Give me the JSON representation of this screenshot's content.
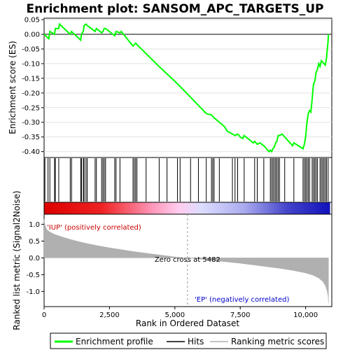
{
  "chart_data": [
    {
      "type": "line",
      "title": "Enrichment plot: SANSOM_APC_TARGETS_UP",
      "ylabel": "Enrichment score (ES)",
      "ylim": [
        -0.42,
        0.055
      ],
      "yticks": [
        0.05,
        0.0,
        -0.05,
        -0.1,
        -0.15,
        -0.2,
        -0.25,
        -0.3,
        -0.35,
        -0.4
      ],
      "ytick_labels": [
        "0.05",
        "0.00",
        "-0.05",
        "-0.10",
        "-0.15",
        "-0.20",
        "-0.25",
        "-0.30",
        "-0.35",
        "-0.40"
      ],
      "series": [
        {
          "name": "Enrichment profile",
          "color": "#00ff00",
          "x": [
            0,
            180,
            220,
            400,
            430,
            560,
            590,
            1000,
            1050,
            1400,
            1430,
            1500,
            1530,
            1600,
            1650,
            1950,
            2000,
            2200,
            2250,
            2300,
            2350,
            2700,
            2750,
            2900,
            2950,
            3400,
            3450,
            3500,
            3550,
            4400,
            5000,
            5500,
            6200,
            6400,
            6500,
            6900,
            7000,
            7200,
            7300,
            7400,
            7500,
            7600,
            7650,
            8000,
            8050,
            8150,
            8250,
            8400,
            8500,
            8600,
            8650,
            8700,
            8750,
            8800,
            8850,
            8900,
            8950,
            9000,
            9100,
            9500,
            9550,
            9900,
            9950,
            10000,
            10050,
            10100,
            10150,
            10200,
            10250,
            10300,
            10350,
            10400,
            10450,
            10500,
            10550,
            10600,
            10650,
            10700,
            10750,
            10800,
            10830,
            10860,
            10870
          ],
          "y": [
            0.0,
            -0.015,
            0.01,
            0.0,
            0.02,
            0.02,
            0.035,
            0.0,
            0.01,
            -0.02,
            0.0,
            0.01,
            0.03,
            0.035,
            0.03,
            0.01,
            0.02,
            0.005,
            0.01,
            0.02,
            0.02,
            -0.005,
            0.01,
            0.005,
            0.01,
            -0.04,
            -0.035,
            -0.03,
            -0.035,
            -0.11,
            -0.16,
            -0.205,
            -0.27,
            -0.275,
            -0.285,
            -0.315,
            -0.33,
            -0.34,
            -0.345,
            -0.34,
            -0.35,
            -0.355,
            -0.345,
            -0.37,
            -0.365,
            -0.375,
            -0.37,
            -0.38,
            -0.39,
            -0.4,
            -0.395,
            -0.4,
            -0.39,
            -0.385,
            -0.37,
            -0.365,
            -0.345,
            -0.345,
            -0.34,
            -0.38,
            -0.37,
            -0.39,
            -0.375,
            -0.35,
            -0.3,
            -0.27,
            -0.26,
            -0.265,
            -0.22,
            -0.17,
            -0.16,
            -0.13,
            -0.12,
            -0.1,
            -0.11,
            -0.09,
            -0.095,
            -0.1,
            -0.105,
            -0.08,
            -0.05,
            -0.02,
            0.0
          ]
        }
      ]
    },
    {
      "type": "barcode",
      "series": [
        {
          "name": "Hits",
          "color": "#000000",
          "x": [
            30,
            150,
            220,
            400,
            430,
            560,
            1000,
            1050,
            1400,
            1430,
            1500,
            1530,
            1600,
            1650,
            1950,
            2000,
            2200,
            2250,
            2300,
            2350,
            2700,
            2750,
            2900,
            3400,
            3450,
            3500,
            3550,
            3900,
            4400,
            4700,
            5100,
            5200,
            5600,
            5900,
            6200,
            6400,
            6450,
            6500,
            6700,
            7200,
            7300,
            7400,
            7650,
            8050,
            8150,
            8400,
            8650,
            8700,
            8750,
            8800,
            8850,
            8900,
            8950,
            9000,
            9200,
            9550,
            9900,
            9950,
            10000,
            10050,
            10100,
            10150,
            10250,
            10300,
            10350,
            10400,
            10450,
            10550,
            10600,
            10650,
            10700,
            10750,
            10800,
            10860
          ]
        }
      ]
    },
    {
      "type": "area",
      "ylabel": "Ranked list metric (Signal2Noise)",
      "xlabel": "Rank in Ordered Dataset",
      "xlim": [
        0,
        11000
      ],
      "ylim": [
        -1.45,
        1.3
      ],
      "xticks": [
        0,
        2500,
        5000,
        7500,
        10000
      ],
      "xtick_labels": [
        "0",
        "2,500",
        "5,000",
        "7,500",
        "10,000"
      ],
      "yticks": [
        1.0,
        0.5,
        0.0,
        -0.5,
        -1.0
      ],
      "ytick_labels": [
        "1.0",
        "0.5",
        "0.0",
        "-0.5",
        "-1.0"
      ],
      "zero_cross": 5482,
      "zero_cross_label": "Zero cross at 5482",
      "pos_label": "'IUP' (positively correlated)",
      "neg_label": "'EP' (negatively correlated)",
      "series": [
        {
          "name": "Ranking metric scores",
          "color": "#b0b0b0",
          "x": [
            0,
            30,
            100,
            200,
            400,
            700,
            1000,
            1500,
            2000,
            2500,
            3000,
            3500,
            4000,
            4500,
            5000,
            5482,
            6000,
            6500,
            7000,
            7500,
            8000,
            8500,
            9000,
            9500,
            10000,
            10300,
            10500,
            10650,
            10750,
            10820,
            10860,
            10875
          ],
          "y": [
            1.15,
            1.0,
            0.85,
            0.78,
            0.7,
            0.62,
            0.55,
            0.45,
            0.37,
            0.3,
            0.24,
            0.18,
            0.13,
            0.08,
            0.03,
            0.0,
            -0.04,
            -0.08,
            -0.12,
            -0.16,
            -0.21,
            -0.26,
            -0.31,
            -0.37,
            -0.45,
            -0.52,
            -0.6,
            -0.7,
            -0.82,
            -0.98,
            -1.15,
            -1.35
          ]
        }
      ]
    }
  ],
  "legend": {
    "items": [
      {
        "label": "Enrichment profile",
        "color": "#00ff00"
      },
      {
        "label": "Hits",
        "color": "#000000"
      },
      {
        "label": "Ranking metric scores",
        "color": "#b0b0b0"
      }
    ]
  }
}
